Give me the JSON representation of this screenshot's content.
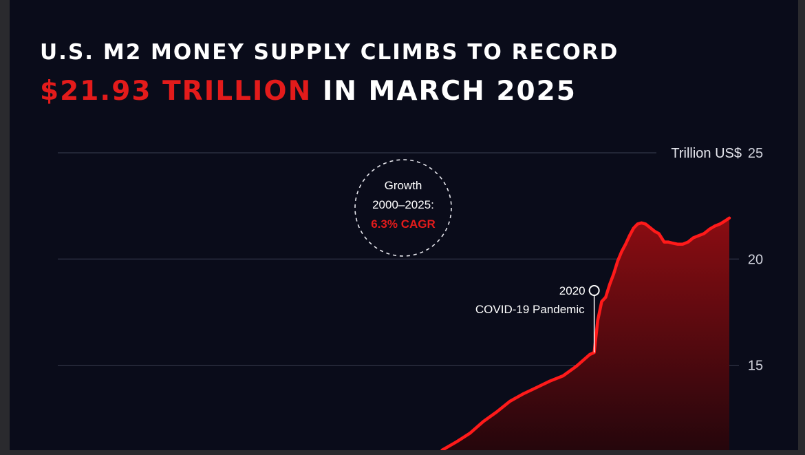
{
  "title": {
    "line1": "U.S. M2 MONEY SUPPLY CLIMBS TO RECORD",
    "line2_highlight": "$21.93 TRILLION",
    "line2_rest": "IN MARCH 2025"
  },
  "badge": {
    "line1": "Growth",
    "line2": "2000–2025:",
    "line3": "6.3% CAGR"
  },
  "annotation": {
    "year": "2020",
    "label": "COVID-19 Pandemic"
  },
  "chart_data": {
    "type": "area",
    "ylabel": "Trillion US$",
    "y_ticks": [
      "25",
      "20",
      "15"
    ],
    "ylim": [
      11.0,
      25.0
    ],
    "x_domain": [
      2000,
      2025.25
    ],
    "x_view": [
      2000,
      2025.25
    ],
    "series": [
      {
        "x": [
          2014.45,
          2015.0,
          2015.5,
          2016.0,
          2016.5,
          2017.0,
          2017.5,
          2018.0,
          2018.5,
          2019.0,
          2019.5,
          2020.0,
          2020.17,
          2020.3,
          2020.45,
          2020.6,
          2020.75,
          2020.9,
          2021.05,
          2021.2,
          2021.35,
          2021.5,
          2021.65,
          2021.8,
          2021.95,
          2022.1,
          2022.25,
          2022.45,
          2022.6,
          2022.8,
          2022.95,
          2023.1,
          2023.3,
          2023.5,
          2023.7,
          2023.9,
          2024.1,
          2024.3,
          2024.5,
          2024.7,
          2024.9,
          2025.1,
          2025.25
        ],
        "values": [
          11.0,
          11.4,
          11.8,
          12.35,
          12.8,
          13.3,
          13.65,
          13.95,
          14.25,
          14.5,
          14.95,
          15.5,
          15.6,
          17.1,
          18.0,
          18.2,
          18.8,
          19.3,
          19.9,
          20.35,
          20.7,
          21.1,
          21.45,
          21.65,
          21.7,
          21.65,
          21.5,
          21.3,
          21.2,
          20.8,
          20.8,
          20.75,
          20.7,
          20.7,
          20.8,
          21.0,
          21.1,
          21.2,
          21.4,
          21.55,
          21.65,
          21.8,
          21.93
        ]
      }
    ],
    "colors": {
      "line": "#ff1a1a",
      "fill_top": "#8b0d12",
      "fill_bottom": "#25060c",
      "accent": "#e31b1b"
    },
    "grid": true
  }
}
